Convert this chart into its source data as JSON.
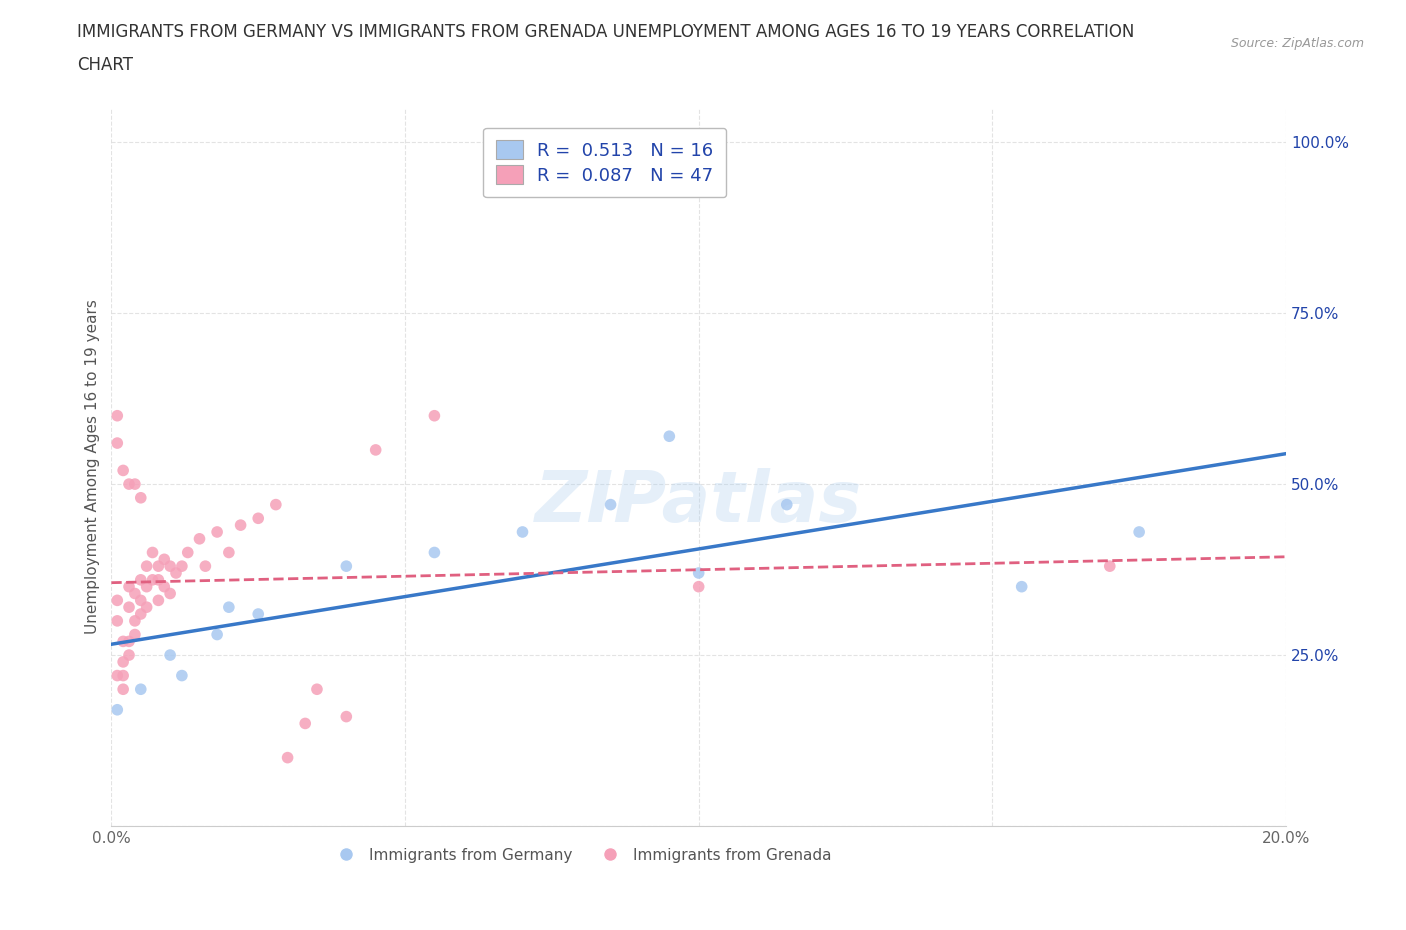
{
  "title_line1": "IMMIGRANTS FROM GERMANY VS IMMIGRANTS FROM GRENADA UNEMPLOYMENT AMONG AGES 16 TO 19 YEARS CORRELATION",
  "title_line2": "CHART",
  "source": "Source: ZipAtlas.com",
  "ylabel": "Unemployment Among Ages 16 to 19 years",
  "xlabel": "",
  "germany_color": "#A8C8F0",
  "grenada_color": "#F5A0B8",
  "germany_line_color": "#3878C8",
  "grenada_line_color": "#E06080",
  "R_germany": 0.513,
  "N_germany": 16,
  "R_grenada": 0.087,
  "N_grenada": 47,
  "legend_text_color": "#2244AA",
  "xlim": [
    0.0,
    0.2
  ],
  "ylim": [
    0.0,
    1.05
  ],
  "yticks": [
    0.0,
    0.25,
    0.5,
    0.75,
    1.0
  ],
  "xticks": [
    0.0,
    0.05,
    0.1,
    0.15,
    0.2
  ],
  "germany_x": [
    0.001,
    0.005,
    0.01,
    0.012,
    0.018,
    0.02,
    0.025,
    0.04,
    0.055,
    0.07,
    0.085,
    0.095,
    0.1,
    0.115,
    0.155,
    0.175
  ],
  "germany_y": [
    0.17,
    0.2,
    0.25,
    0.22,
    0.28,
    0.32,
    0.31,
    0.38,
    0.4,
    0.43,
    0.47,
    0.57,
    0.37,
    0.47,
    0.35,
    0.43
  ],
  "grenada_x": [
    0.001,
    0.001,
    0.001,
    0.002,
    0.002,
    0.002,
    0.002,
    0.003,
    0.003,
    0.003,
    0.003,
    0.004,
    0.004,
    0.004,
    0.005,
    0.005,
    0.005,
    0.006,
    0.006,
    0.006,
    0.007,
    0.007,
    0.008,
    0.008,
    0.008,
    0.009,
    0.009,
    0.01,
    0.01,
    0.011,
    0.012,
    0.013,
    0.015,
    0.016,
    0.018,
    0.02,
    0.022,
    0.025,
    0.028,
    0.03,
    0.033,
    0.035,
    0.04,
    0.045,
    0.055,
    0.1,
    0.17
  ],
  "grenada_y": [
    0.33,
    0.3,
    0.22,
    0.27,
    0.24,
    0.22,
    0.2,
    0.35,
    0.32,
    0.27,
    0.25,
    0.34,
    0.3,
    0.28,
    0.36,
    0.33,
    0.31,
    0.38,
    0.35,
    0.32,
    0.4,
    0.36,
    0.38,
    0.36,
    0.33,
    0.39,
    0.35,
    0.38,
    0.34,
    0.37,
    0.38,
    0.4,
    0.42,
    0.38,
    0.43,
    0.4,
    0.44,
    0.45,
    0.47,
    0.1,
    0.15,
    0.2,
    0.16,
    0.55,
    0.6,
    0.35,
    0.38
  ],
  "grenada_high_x": [
    0.001,
    0.001,
    0.002,
    0.003,
    0.004,
    0.005
  ],
  "grenada_high_y": [
    0.6,
    0.56,
    0.52,
    0.5,
    0.5,
    0.48
  ],
  "watermark": "ZIPatlas",
  "background_color": "#FFFFFF",
  "grid_color": "#CCCCCC",
  "title_fontsize": 12,
  "axis_label_fontsize": 11,
  "tick_fontsize": 11,
  "legend_fontsize": 13
}
